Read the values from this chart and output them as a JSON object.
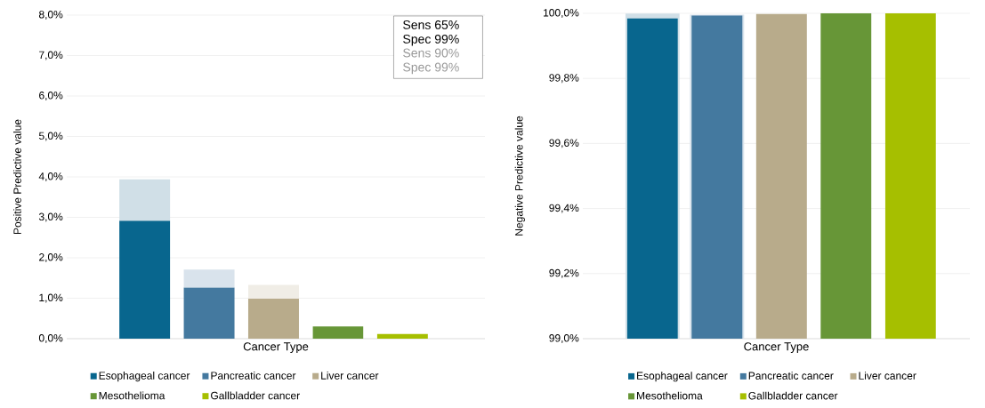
{
  "chart_data": [
    {
      "type": "bar",
      "stacked": true,
      "xlabel": "Cancer Type",
      "ylabel": "Positive Predictive value",
      "categories": [
        null,
        null,
        null,
        null,
        null
      ],
      "series": [
        {
          "name": "Esophageal cancer",
          "color": "#08668e",
          "values": [
            2.92,
            null,
            null,
            null,
            null
          ]
        },
        {
          "name": "Pancreatic cancer",
          "color": "#44799f",
          "values": [
            null,
            1.27,
            null,
            null,
            null
          ]
        },
        {
          "name": "Liver cancer",
          "color": "#b8ab8b",
          "values": [
            null,
            null,
            0.99,
            null,
            null
          ]
        },
        {
          "name": "Mesothelioma",
          "color": "#679637",
          "values": [
            null,
            null,
            null,
            0.3,
            null
          ]
        },
        {
          "name": "Gallbladder cancer",
          "color": "#a6bf00",
          "values": [
            null,
            null,
            null,
            null,
            0.12
          ]
        },
        {
          "color": "#d0dfe7",
          "values": [
            1.02,
            null,
            null,
            null,
            null
          ]
        },
        {
          "color": "#d9e3ec",
          "values": [
            null,
            0.44,
            null,
            null,
            null
          ]
        },
        {
          "color": "#f0ede6",
          "values": [
            null,
            null,
            0.34,
            null,
            null
          ]
        }
      ],
      "ylim": [
        0,
        8
      ],
      "yticks": [
        {
          "value": 0,
          "label": "0,0%"
        },
        {
          "value": 1,
          "label": "1,0%"
        },
        {
          "value": 2,
          "label": "2,0%"
        },
        {
          "value": 3,
          "label": "3,0%"
        },
        {
          "value": 4,
          "label": "4,0%"
        },
        {
          "value": 5,
          "label": "5,0%"
        },
        {
          "value": 6,
          "label": "6,0%"
        },
        {
          "value": 7,
          "label": "7,0%"
        },
        {
          "value": 8,
          "label": "8,0%"
        }
      ],
      "grid": "y",
      "legend": "bottom",
      "annotations": [
        "Sens 65% Spec 99%",
        "Sens 90% Spec 99%"
      ]
    },
    {
      "type": "bar",
      "xlabel": "Cancer Type",
      "ylabel": "Negative Predictive value",
      "categories": [
        null,
        null,
        null,
        null,
        null
      ],
      "series": [
        {
          "color": "#d0dfe7",
          "values": [
            99.999,
            null,
            null,
            null,
            null
          ]
        },
        {
          "color": "#d9e3ec",
          "values": [
            null,
            99.996,
            null,
            null,
            null
          ]
        },
        {
          "name": "Esophageal cancer",
          "color": "#08668e",
          "values": [
            99.984,
            null,
            null,
            null,
            null
          ]
        },
        {
          "name": "Pancreatic cancer",
          "color": "#44799f",
          "values": [
            null,
            99.993,
            null,
            null,
            null
          ]
        },
        {
          "name": "Liver cancer",
          "color": "#b8ab8b",
          "values": [
            null,
            null,
            99.998,
            null,
            null
          ]
        },
        {
          "name": "Mesothelioma",
          "color": "#679637",
          "values": [
            null,
            null,
            null,
            100.0,
            null
          ]
        },
        {
          "name": "Gallbladder cancer",
          "color": "#a6bf00",
          "values": [
            null,
            null,
            null,
            null,
            100.0
          ]
        }
      ],
      "ylim": [
        99,
        100
      ],
      "yticks": [
        {
          "value": 99.0,
          "label": "99,0%"
        },
        {
          "value": 99.2,
          "label": "99,2%"
        },
        {
          "value": 99.4,
          "label": "99,4%"
        },
        {
          "value": 99.6,
          "label": "99,6%"
        },
        {
          "value": 99.8,
          "label": "99,8%"
        },
        {
          "value": 100.0,
          "label": "100,0%"
        }
      ],
      "grid": "y",
      "legend": "bottom"
    }
  ]
}
